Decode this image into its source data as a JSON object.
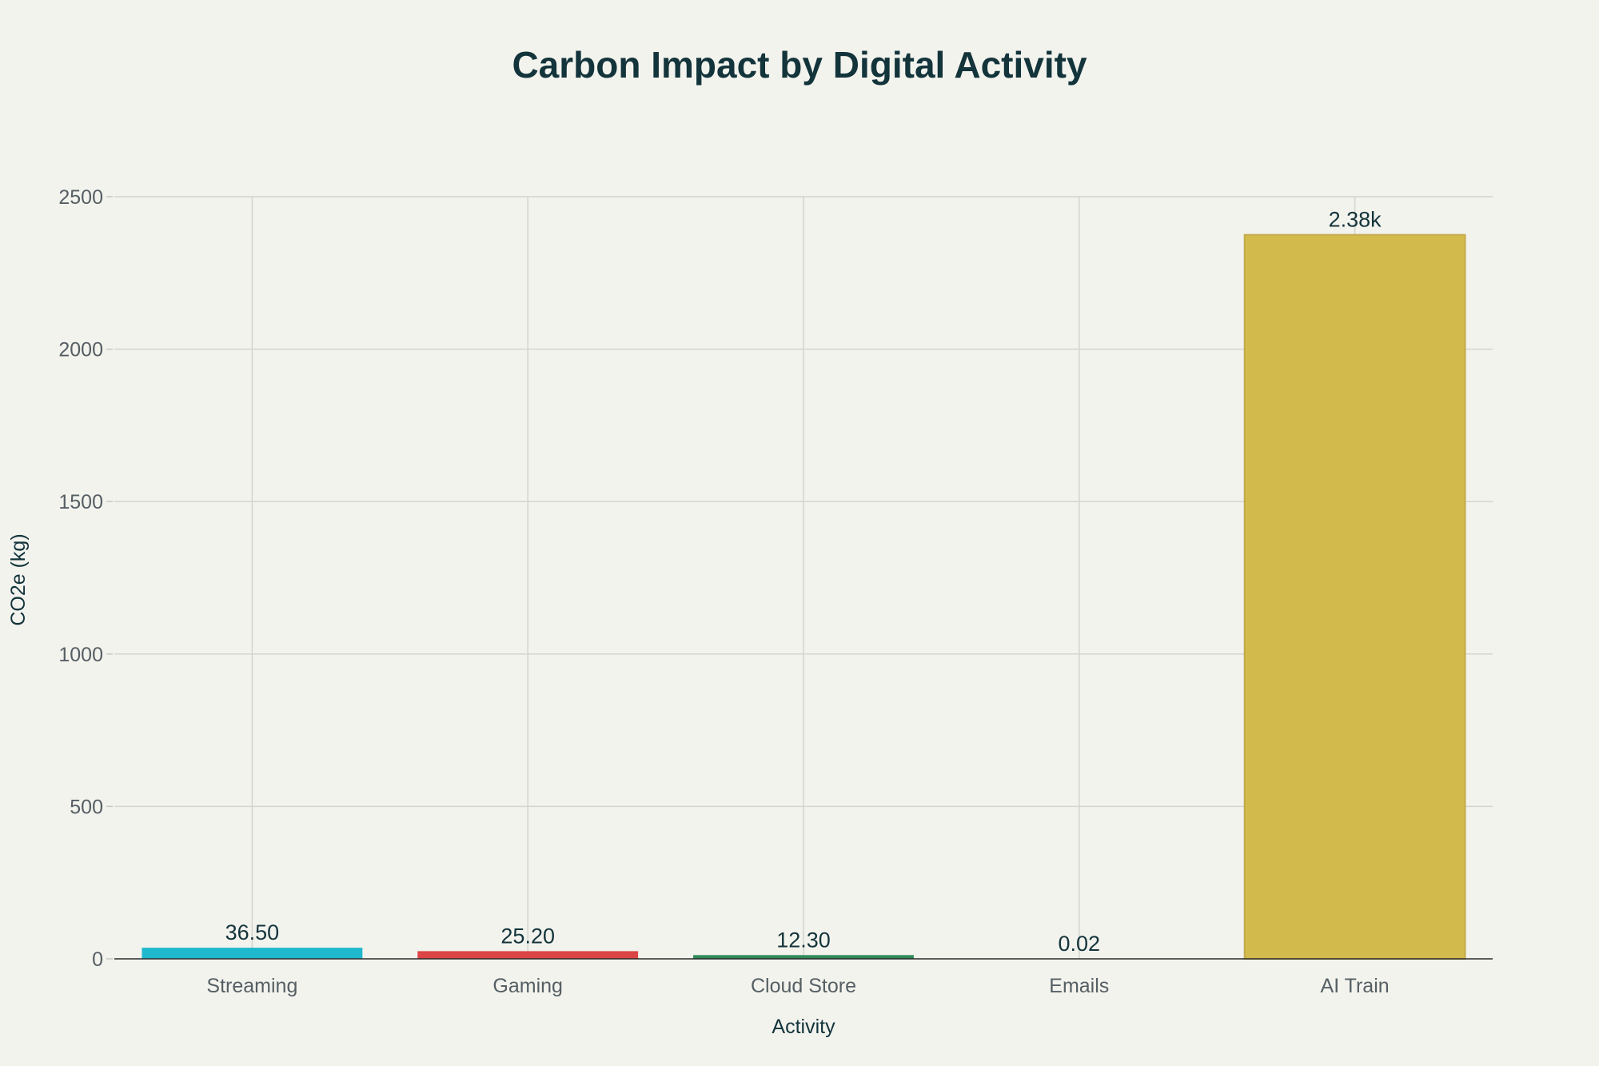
{
  "chart_data": {
    "type": "bar",
    "title": "Carbon Impact by Digital Activity",
    "xlabel": "Activity",
    "ylabel": "CO2e (kg)",
    "categories": [
      "Streaming",
      "Gaming",
      "Cloud Store",
      "Emails",
      "AI Train"
    ],
    "values": [
      36.5,
      25.2,
      12.3,
      0.02,
      2375
    ],
    "data_labels": [
      "36.50",
      "25.20",
      "12.30",
      "0.02",
      "2.38k"
    ],
    "colors": [
      "#1FB8CD",
      "#DB4545",
      "#2E8B57",
      "#5D878F",
      "#D2BA4C"
    ],
    "ylim": [
      0,
      2500
    ],
    "yticks": [
      0,
      500,
      1000,
      1500,
      2000,
      2500
    ],
    "yticks_labels": [
      "0",
      "500",
      "1000",
      "1500",
      "2000",
      "2500"
    ],
    "grid": true,
    "legend": "none"
  }
}
